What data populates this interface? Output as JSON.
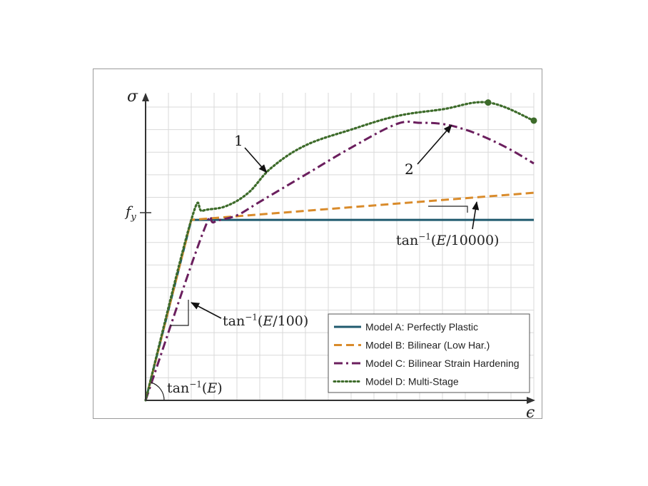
{
  "chart_data": {
    "type": "line",
    "xlabel": "ϵ",
    "ylabel": "σ",
    "y_tick_label": "f_y",
    "xlim": [
      0,
      17
    ],
    "ylim": [
      0,
      13
    ],
    "grid": true,
    "legend_position": "bottom-right",
    "series": [
      {
        "name": "Model A: Perfectly Plastic",
        "color": "#1f5a6e",
        "dash": "solid",
        "points": [
          [
            0,
            0
          ],
          [
            2,
            8
          ],
          [
            17,
            8
          ]
        ]
      },
      {
        "name": "Model B: Bilinear (Low Har.)",
        "color": "#d98b2b",
        "dash": "dashed",
        "points": [
          [
            0,
            0
          ],
          [
            2,
            8
          ],
          [
            17,
            9.2
          ]
        ]
      },
      {
        "name": "Model C: Bilinear Strain Hardening",
        "color": "#6b1f5e",
        "dash": "dashdot",
        "points": [
          [
            0,
            0
          ],
          [
            2.5,
            7.4
          ],
          [
            3,
            7.9
          ],
          [
            4,
            8.2
          ],
          [
            5,
            8.8
          ],
          [
            7,
            10
          ],
          [
            9,
            11.2
          ],
          [
            11,
            12.25
          ],
          [
            12,
            12.3
          ],
          [
            13,
            12.25
          ],
          [
            14,
            12
          ],
          [
            15,
            11.6
          ],
          [
            16,
            11.1
          ],
          [
            17,
            10.5
          ]
        ]
      },
      {
        "name": "Model D: Multi-Stage",
        "color": "#3d6b2a",
        "dash": "dotted",
        "points": [
          [
            0,
            0
          ],
          [
            2,
            8
          ],
          [
            2.5,
            8.4
          ],
          [
            3.5,
            8.6
          ],
          [
            4.5,
            9.2
          ],
          [
            5.5,
            10.3
          ],
          [
            7,
            11.3
          ],
          [
            9,
            12
          ],
          [
            11,
            12.6
          ],
          [
            13,
            12.9
          ],
          [
            15,
            13.2
          ],
          [
            17,
            12.4
          ]
        ],
        "markers": [
          [
            15,
            13.2
          ],
          [
            17,
            12.4
          ]
        ]
      }
    ],
    "annotations": [
      {
        "text": "1",
        "arrow_to": [
          5.3,
          10.1
        ],
        "label_at": [
          4,
          11.5
        ]
      },
      {
        "text": "2",
        "arrow_to": [
          13.4,
          12.2
        ],
        "label_at": [
          11.8,
          10.2
        ]
      },
      {
        "text_parts": [
          "tan",
          "−1",
          "(",
          "E",
          "/10000)"
        ],
        "arrow_to": [
          14.3,
          8.7
        ]
      },
      {
        "text_parts": [
          "tan",
          "−1",
          "(",
          "E",
          "/100)"
        ],
        "arrow_to": [
          1.9,
          4.6
        ]
      },
      {
        "text_parts": [
          "tan",
          "−1",
          "(",
          "E",
          ")"
        ]
      }
    ]
  }
}
